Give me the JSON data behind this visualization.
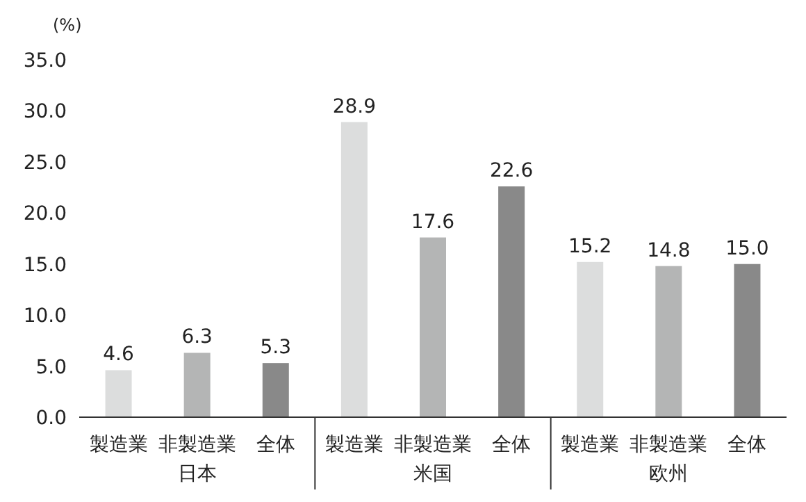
{
  "chart_data": {
    "type": "bar",
    "ylabel": "(%)",
    "categories": [
      "製造業",
      "非製造業",
      "全体",
      "製造業",
      "非製造業",
      "全体",
      "製造業",
      "非製造業",
      "全体"
    ],
    "values": [
      4.6,
      6.3,
      5.3,
      28.9,
      17.6,
      22.6,
      15.2,
      14.8,
      15.0
    ],
    "value_labels": [
      "4.6",
      "6.3",
      "5.3",
      "28.9",
      "17.6",
      "22.6",
      "15.2",
      "14.8",
      "15.0"
    ],
    "colors": [
      "#dcdddd",
      "#b4b5b5",
      "#898989",
      "#dcdddd",
      "#b4b5b5",
      "#898989",
      "#dcdddd",
      "#b4b5b5",
      "#898989"
    ],
    "annotations": [
      "日本",
      "米国",
      "欧州"
    ],
    "ylim": [
      0,
      35
    ],
    "yticks": [
      {
        "value": 0,
        "label": "0.0"
      },
      {
        "value": 5,
        "label": "5.0"
      },
      {
        "value": 10,
        "label": "10.0"
      },
      {
        "value": 15,
        "label": "15.0"
      },
      {
        "value": 20,
        "label": "20.0"
      },
      {
        "value": 25,
        "label": "25.0"
      },
      {
        "value": 30,
        "label": "30.0"
      },
      {
        "value": 35,
        "label": "35.0"
      }
    ],
    "grid": false
  }
}
